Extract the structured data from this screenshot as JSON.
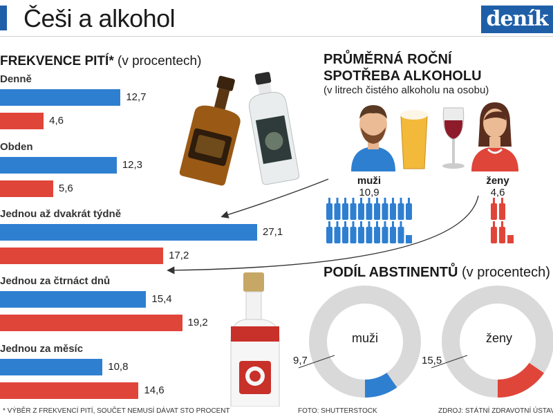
{
  "header": {
    "title": "Češi a alkohol",
    "logo": "deník"
  },
  "colors": {
    "men": "#2f7fd1",
    "women": "#e0453a",
    "brand": "#1f5fa8",
    "donut_gray": "#d9d9d9"
  },
  "frequency": {
    "title_bold": "FREKVENCE PITÍ",
    "title_star": "*",
    "title_light": "(v procentech)"
  },
  "consumption": {
    "title": "PRŮMĚRNÁ ROČNÍ SPOTŘEBA ALKOHOLU",
    "subtitle": "(v litrech čistého alkoholu na osobu)",
    "men_label": "muži",
    "men_value": "10,9",
    "women_label": "ženy",
    "women_value": "4,6"
  },
  "abstinents": {
    "title_bold": "PODÍL ABSTINENTŮ",
    "title_light": "(v procentech)",
    "men_label": "muži",
    "men_value": "9,7",
    "women_label": "ženy",
    "women_value": "15,5"
  },
  "footer": {
    "note": "* Výběr z frekvencí pití, součet nemusí dávat sto procent",
    "photo": "Foto: Shutterstock",
    "source": "Zdroj: Státní zdravotní ústav"
  },
  "chart_data": [
    {
      "type": "bar",
      "title": "FREKVENCE PITÍ* (v procentech)",
      "orientation": "horizontal",
      "categories": [
        "Denně",
        "Obden",
        "Jednou až dvakrát týdně",
        "Jednou za čtrnáct dnů",
        "Jednou za měsíc"
      ],
      "series": [
        {
          "values": [
            12.7,
            12.3,
            27.1,
            15.4,
            10.8
          ],
          "labels": [
            "12,7",
            "12,3",
            "27,1",
            "15,4",
            "10,8"
          ],
          "color": "#2f7fd1"
        },
        {
          "values": [
            4.6,
            5.6,
            17.2,
            19.2,
            14.6
          ],
          "labels": [
            "4,6",
            "5,6",
            "17,2",
            "19,2",
            "14,6"
          ],
          "color": "#e0453a"
        }
      ],
      "grid": false
    },
    {
      "type": "pie",
      "title": "PODÍL ABSTINENTŮ (v procentech)",
      "subtype": "donut",
      "charts": [
        {
          "name": "muži",
          "value": 9.7,
          "label": "9,7",
          "color": "#2f7fd1"
        },
        {
          "name": "ženy",
          "value": 15.5,
          "label": "15,5",
          "color": "#e0453a"
        }
      ]
    }
  ]
}
